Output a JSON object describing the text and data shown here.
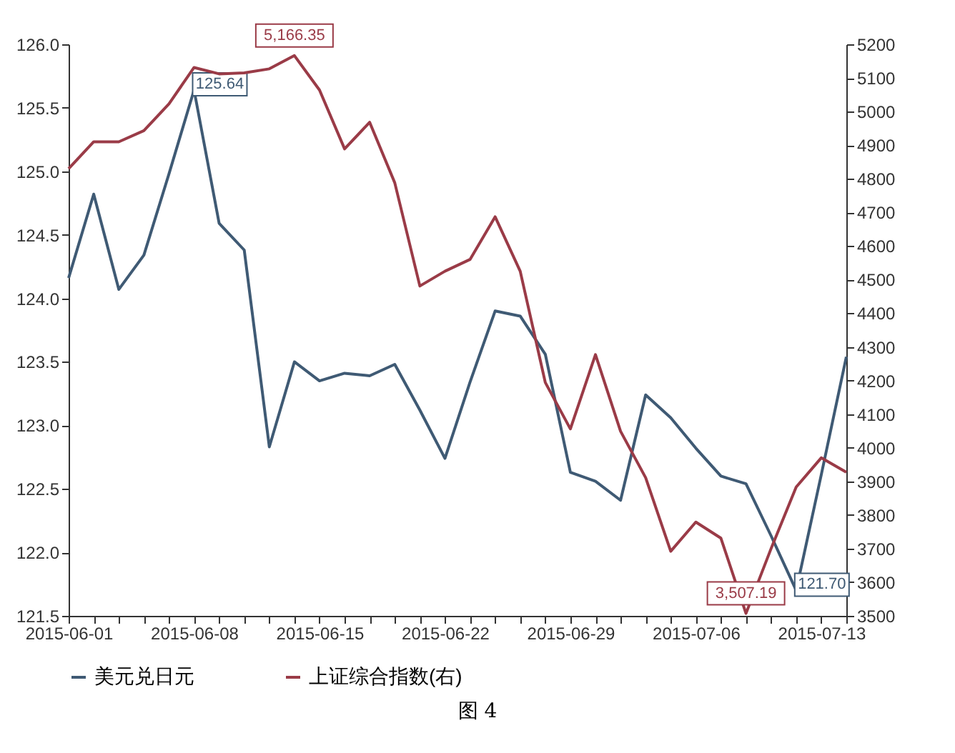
{
  "chart_data": {
    "type": "line",
    "categories": [
      "2015-06-01",
      null,
      null,
      null,
      null,
      "2015-06-08",
      null,
      null,
      null,
      null,
      "2015-06-15",
      null,
      null,
      null,
      null,
      "2015-06-22",
      null,
      null,
      null,
      null,
      "2015-06-29",
      null,
      null,
      null,
      null,
      "2015-07-06",
      null,
      null,
      null,
      null,
      "2015-07-13",
      null
    ],
    "series": [
      {
        "name": "美元兑日元",
        "color": "#3f5a74",
        "values": [
          124.16,
          124.82,
          124.07,
          124.34,
          124.98,
          125.64,
          124.59,
          124.38,
          122.83,
          123.5,
          123.35,
          123.41,
          123.39,
          123.48,
          123.12,
          122.74,
          123.34,
          123.9,
          123.86,
          123.56,
          122.63,
          122.56,
          122.41,
          123.24,
          123.06,
          122.82,
          122.6,
          122.54,
          122.13,
          121.7,
          122.61,
          123.54
        ],
        "value_labels": [
          null,
          null,
          null,
          null,
          null,
          "125.64",
          null,
          null,
          null,
          null,
          null,
          null,
          null,
          null,
          null,
          null,
          null,
          null,
          null,
          null,
          null,
          null,
          null,
          null,
          null,
          null,
          null,
          null,
          null,
          "121.70",
          null,
          null
        ]
      },
      {
        "name": "上证综合指数(右)",
        "color": "#9a3b47",
        "axis": "y2",
        "values": [
          4830,
          4910,
          4910,
          4943,
          5023,
          5131,
          5112,
          5115,
          5127,
          5166.35,
          5064,
          4889,
          4968,
          4788,
          4481,
          4525,
          4560,
          4687,
          4525,
          4194,
          4056,
          4277,
          4049,
          3911,
          3692,
          3779,
          3731,
          3507.19,
          3700,
          3883,
          3970,
          3927
        ],
        "value_labels": [
          null,
          null,
          null,
          null,
          null,
          null,
          null,
          null,
          null,
          "5,166.35",
          null,
          null,
          null,
          null,
          null,
          null,
          null,
          null,
          null,
          null,
          null,
          null,
          null,
          null,
          null,
          null,
          null,
          "3,507.19",
          null,
          null,
          null,
          null
        ]
      }
    ],
    "ylim": [
      121.5,
      126.0
    ],
    "yticks": [
      121.5,
      {
        "value": 122,
        "label": "122.0"
      },
      122.5,
      {
        "value": 123,
        "label": "123.0"
      },
      123.5,
      {
        "value": 124,
        "label": "124.0"
      },
      124.5,
      {
        "value": 125,
        "label": "125.0"
      },
      125.5,
      {
        "value": 126,
        "label": "126.0"
      }
    ],
    "y2lim": [
      3500,
      5200
    ],
    "y2ticks": [
      3500,
      3600,
      3700,
      3800,
      3900,
      4000,
      4100,
      4200,
      4300,
      4400,
      4500,
      4600,
      4700,
      4800,
      4900,
      5000,
      5100,
      5200
    ],
    "legend": "bottom",
    "annotations": [
      "图 4"
    ]
  }
}
